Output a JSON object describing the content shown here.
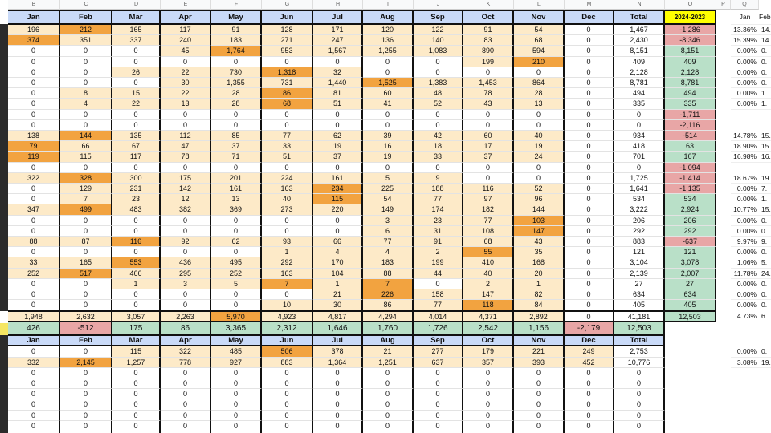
{
  "column_letters": [
    "B",
    "C",
    "D",
    "E",
    "F",
    "G",
    "H",
    "I",
    "J",
    "K",
    "L",
    "M",
    "N",
    "O",
    "P",
    "Q"
  ],
  "table1": {
    "header": [
      "Jan",
      "Feb",
      "Mar",
      "Apr",
      "May",
      "Jun",
      "Jul",
      "Aug",
      "Sep",
      "Oct",
      "Nov",
      "Dec",
      "Total",
      "2024-2023"
    ],
    "side_header": [
      "Jan",
      "Feb"
    ],
    "rows": [
      {
        "months": [
          "196",
          "212",
          "165",
          "117",
          "91",
          "128",
          "171",
          "120",
          "122",
          "91",
          "54",
          "0",
          "1,467"
        ],
        "change": "-1,286",
        "share": [
          "13.36%",
          "14."
        ]
      },
      {
        "months": [
          "374",
          "351",
          "337",
          "240",
          "183",
          "271",
          "247",
          "136",
          "140",
          "83",
          "68",
          "0",
          "2,430"
        ],
        "change": "-8,346",
        "share": [
          "15.39%",
          "14."
        ]
      },
      {
        "months": [
          "0",
          "0",
          "0",
          "45",
          "1,764",
          "953",
          "1,567",
          "1,255",
          "1,083",
          "890",
          "594",
          "0",
          "8,151"
        ],
        "change": "8,151",
        "share": [
          "0.00%",
          "0."
        ]
      },
      {
        "months": [
          "0",
          "0",
          "0",
          "0",
          "0",
          "0",
          "0",
          "0",
          "0",
          "199",
          "210",
          "0",
          "409"
        ],
        "change": "409",
        "share": [
          "0.00%",
          "0."
        ]
      },
      {
        "months": [
          "0",
          "0",
          "26",
          "22",
          "730",
          "1,318",
          "32",
          "0",
          "0",
          "0",
          "0",
          "0",
          "2,128"
        ],
        "change": "2,128",
        "share": [
          "0.00%",
          "0."
        ]
      },
      {
        "months": [
          "0",
          "0",
          "0",
          "30",
          "1,355",
          "731",
          "1,440",
          "1,525",
          "1,383",
          "1,453",
          "864",
          "0",
          "8,781"
        ],
        "change": "8,781",
        "share": [
          "0.00%",
          "0."
        ]
      },
      {
        "months": [
          "0",
          "8",
          "15",
          "22",
          "28",
          "86",
          "81",
          "60",
          "48",
          "78",
          "28",
          "0",
          "494"
        ],
        "change": "494",
        "share": [
          "0.00%",
          "1."
        ]
      },
      {
        "months": [
          "0",
          "4",
          "22",
          "13",
          "28",
          "68",
          "51",
          "41",
          "52",
          "43",
          "13",
          "0",
          "335"
        ],
        "change": "335",
        "share": [
          "0.00%",
          "1."
        ]
      },
      {
        "months": [
          "0",
          "0",
          "0",
          "0",
          "0",
          "0",
          "0",
          "0",
          "0",
          "0",
          "0",
          "0",
          "0"
        ],
        "change": "-1,711"
      },
      {
        "months": [
          "0",
          "0",
          "0",
          "0",
          "0",
          "0",
          "0",
          "0",
          "0",
          "0",
          "0",
          "0",
          "0"
        ],
        "change": "-2,116"
      },
      {
        "months": [
          "138",
          "144",
          "135",
          "112",
          "85",
          "77",
          "62",
          "39",
          "42",
          "60",
          "40",
          "0",
          "934"
        ],
        "change": "-514",
        "share": [
          "14.78%",
          "15."
        ]
      },
      {
        "months": [
          "79",
          "66",
          "67",
          "47",
          "37",
          "33",
          "19",
          "16",
          "18",
          "17",
          "19",
          "0",
          "418"
        ],
        "change": "63",
        "share": [
          "18.90%",
          "15."
        ]
      },
      {
        "months": [
          "119",
          "115",
          "117",
          "78",
          "71",
          "51",
          "37",
          "19",
          "33",
          "37",
          "24",
          "0",
          "701"
        ],
        "change": "167",
        "share": [
          "16.98%",
          "16."
        ]
      },
      {
        "months": [
          "0",
          "0",
          "0",
          "0",
          "0",
          "0",
          "0",
          "0",
          "0",
          "0",
          "0",
          "0",
          "0"
        ],
        "change": "-1,094"
      },
      {
        "months": [
          "322",
          "328",
          "300",
          "175",
          "201",
          "224",
          "161",
          "5",
          "9",
          "0",
          "0",
          "0",
          "1,725"
        ],
        "change": "-1,414",
        "share": [
          "18.67%",
          "19."
        ]
      },
      {
        "months": [
          "0",
          "129",
          "231",
          "142",
          "161",
          "163",
          "234",
          "225",
          "188",
          "116",
          "52",
          "0",
          "1,641"
        ],
        "change": "-1,135",
        "share": [
          "0.00%",
          "7."
        ]
      },
      {
        "months": [
          "0",
          "7",
          "23",
          "12",
          "13",
          "40",
          "115",
          "54",
          "77",
          "97",
          "96",
          "0",
          "534"
        ],
        "change": "534",
        "share": [
          "0.00%",
          "1."
        ]
      },
      {
        "months": [
          "347",
          "499",
          "483",
          "382",
          "369",
          "273",
          "220",
          "149",
          "174",
          "182",
          "144",
          "0",
          "3,222"
        ],
        "change": "2,924",
        "share": [
          "10.77%",
          "15."
        ]
      },
      {
        "months": [
          "0",
          "0",
          "0",
          "0",
          "0",
          "0",
          "0",
          "3",
          "23",
          "77",
          "103",
          "0",
          "206"
        ],
        "change": "206",
        "share": [
          "0.00%",
          "0."
        ]
      },
      {
        "months": [
          "0",
          "0",
          "0",
          "0",
          "0",
          "0",
          "0",
          "6",
          "31",
          "108",
          "147",
          "0",
          "292"
        ],
        "change": "292",
        "share": [
          "0.00%",
          "0."
        ]
      },
      {
        "months": [
          "88",
          "87",
          "116",
          "92",
          "62",
          "93",
          "66",
          "77",
          "91",
          "68",
          "43",
          "0",
          "883"
        ],
        "change": "-637",
        "share": [
          "9.97%",
          "9."
        ]
      },
      {
        "months": [
          "0",
          "0",
          "0",
          "0",
          "0",
          "1",
          "4",
          "4",
          "2",
          "55",
          "35",
          "0",
          "121"
        ],
        "change": "121",
        "share": [
          "0.00%",
          "0."
        ]
      },
      {
        "months": [
          "33",
          "165",
          "553",
          "436",
          "495",
          "292",
          "170",
          "183",
          "199",
          "410",
          "168",
          "0",
          "3,104"
        ],
        "change": "3,078",
        "share": [
          "1.06%",
          "5."
        ]
      },
      {
        "months": [
          "252",
          "517",
          "466",
          "295",
          "252",
          "163",
          "104",
          "88",
          "44",
          "40",
          "20",
          "0",
          "2,139"
        ],
        "change": "2,007",
        "share": [
          "11.78%",
          "24."
        ]
      },
      {
        "months": [
          "0",
          "0",
          "1",
          "3",
          "5",
          "7",
          "1",
          "7",
          "0",
          "2",
          "1",
          "0",
          "27"
        ],
        "change": "27",
        "share": [
          "0.00%",
          "0."
        ]
      },
      {
        "months": [
          "0",
          "0",
          "0",
          "0",
          "0",
          "0",
          "21",
          "226",
          "158",
          "147",
          "82",
          "0",
          "634"
        ],
        "change": "634",
        "share": [
          "0.00%",
          "0."
        ]
      },
      {
        "months": [
          "0",
          "0",
          "0",
          "0",
          "0",
          "10",
          "30",
          "86",
          "77",
          "118",
          "84",
          "0",
          "405"
        ],
        "change": "405",
        "share": [
          "0.00%",
          "0."
        ]
      }
    ],
    "totals": {
      "months": [
        "1,948",
        "2,632",
        "3,057",
        "2,263",
        "5,970",
        "4,923",
        "4,817",
        "4,294",
        "4,014",
        "4,371",
        "2,892",
        "0",
        "41,181"
      ],
      "change": "12,503",
      "share": [
        "4.73%",
        "6."
      ]
    },
    "difference": [
      "426",
      "-512",
      "175",
      "86",
      "3,365",
      "2,312",
      "1,646",
      "1,760",
      "1,726",
      "2,542",
      "1,156",
      "-2,179",
      "12,503"
    ]
  },
  "table2": {
    "header": [
      "Jan",
      "Feb",
      "Mar",
      "Apr",
      "May",
      "Jun",
      "Jul",
      "Aug",
      "Sep",
      "Oct",
      "Nov",
      "Dec",
      "Total"
    ],
    "rows": [
      {
        "months": [
          "0",
          "0",
          "115",
          "322",
          "485",
          "506",
          "378",
          "21",
          "277",
          "179",
          "221",
          "249",
          "2,753"
        ],
        "share": [
          "0.00%",
          "0."
        ]
      },
      {
        "months": [
          "332",
          "2,145",
          "1,257",
          "778",
          "927",
          "883",
          "1,364",
          "1,251",
          "637",
          "357",
          "393",
          "452",
          "10,776"
        ],
        "share": [
          "3.08%",
          "19."
        ]
      },
      {
        "months": [
          "0",
          "0",
          "0",
          "0",
          "0",
          "0",
          "0",
          "0",
          "0",
          "0",
          "0",
          "0",
          "0"
        ]
      },
      {
        "months": [
          "0",
          "0",
          "0",
          "0",
          "0",
          "0",
          "0",
          "0",
          "0",
          "0",
          "0",
          "0",
          "0"
        ]
      },
      {
        "months": [
          "0",
          "0",
          "0",
          "0",
          "0",
          "0",
          "0",
          "0",
          "0",
          "0",
          "0",
          "0",
          "0"
        ]
      },
      {
        "months": [
          "0",
          "0",
          "0",
          "0",
          "0",
          "0",
          "0",
          "0",
          "0",
          "0",
          "0",
          "0",
          "0"
        ]
      },
      {
        "months": [
          "0",
          "0",
          "0",
          "0",
          "0",
          "0",
          "0",
          "0",
          "0",
          "0",
          "0",
          "0",
          "0"
        ]
      },
      {
        "months": [
          "0",
          "0",
          "0",
          "0",
          "0",
          "0",
          "0",
          "0",
          "0",
          "0",
          "0",
          "0",
          "0"
        ]
      },
      {
        "months": [
          "0",
          "0",
          "0",
          "0",
          "0",
          "0",
          "0",
          "0",
          "0",
          "0",
          "0",
          "0",
          "0"
        ]
      }
    ]
  }
}
